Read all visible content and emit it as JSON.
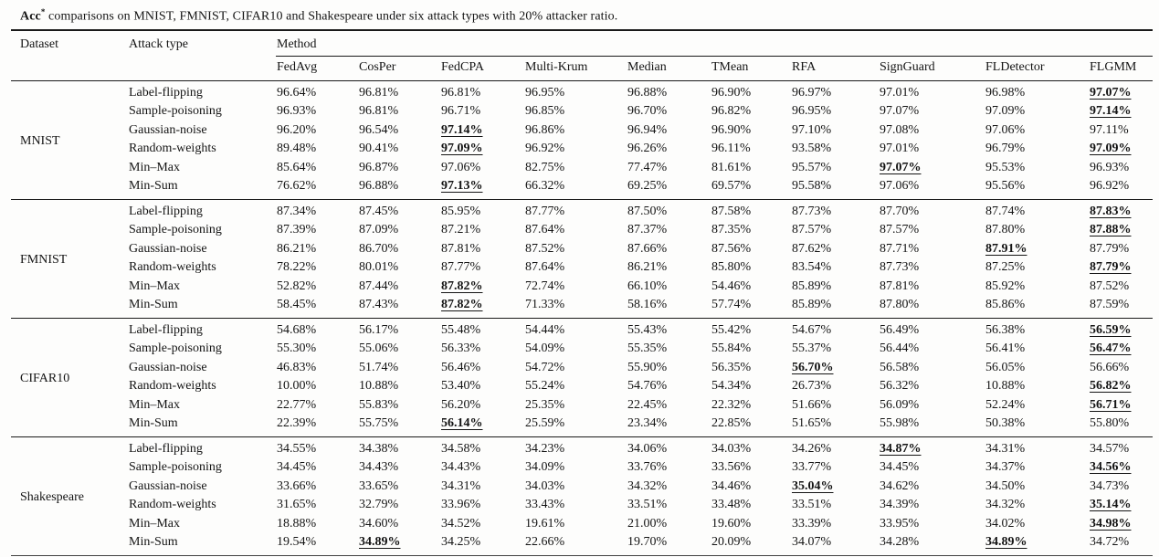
{
  "caption": {
    "lead": "Acc",
    "sup": "*",
    "rest": " comparisons on MNIST, FMNIST, CIFAR10 and Shakespeare under six attack types with 20% attacker ratio."
  },
  "table": {
    "col1_header": "Dataset",
    "col2_header": "Attack type",
    "method_group_header": "Method",
    "methods": [
      "FedAvg",
      "CosPer",
      "FedCPA",
      "Multi-Krum",
      "Median",
      "TMean",
      "RFA",
      "SignGuard",
      "FLDetector",
      "FLGMM"
    ],
    "sections": [
      {
        "dataset": "MNIST",
        "rows": [
          {
            "attack": "Label-flipping",
            "values": [
              "96.64%",
              "96.81%",
              "96.81%",
              "96.95%",
              "96.88%",
              "96.90%",
              "96.97%",
              "97.01%",
              "96.98%",
              "97.07%"
            ],
            "best": [
              9
            ]
          },
          {
            "attack": "Sample-poisoning",
            "values": [
              "96.93%",
              "96.81%",
              "96.71%",
              "96.85%",
              "96.70%",
              "96.82%",
              "96.95%",
              "97.07%",
              "97.09%",
              "97.14%"
            ],
            "best": [
              9
            ]
          },
          {
            "attack": "Gaussian-noise",
            "values": [
              "96.20%",
              "96.54%",
              "97.14%",
              "96.86%",
              "96.94%",
              "96.90%",
              "97.10%",
              "97.08%",
              "97.06%",
              "97.11%"
            ],
            "best": [
              2
            ]
          },
          {
            "attack": "Random-weights",
            "values": [
              "89.48%",
              "90.41%",
              "97.09%",
              "96.92%",
              "96.26%",
              "96.11%",
              "93.58%",
              "97.01%",
              "96.79%",
              "97.09%"
            ],
            "best": [
              2,
              9
            ]
          },
          {
            "attack": "Min–Max",
            "values": [
              "85.64%",
              "96.87%",
              "97.06%",
              "82.75%",
              "77.47%",
              "81.61%",
              "95.57%",
              "97.07%",
              "95.53%",
              "96.93%"
            ],
            "best": [
              7
            ]
          },
          {
            "attack": "Min-Sum",
            "values": [
              "76.62%",
              "96.88%",
              "97.13%",
              "66.32%",
              "69.25%",
              "69.57%",
              "95.58%",
              "97.06%",
              "95.56%",
              "96.92%"
            ],
            "best": [
              2
            ]
          }
        ]
      },
      {
        "dataset": "FMNIST",
        "rows": [
          {
            "attack": "Label-flipping",
            "values": [
              "87.34%",
              "87.45%",
              "85.95%",
              "87.77%",
              "87.50%",
              "87.58%",
              "87.73%",
              "87.70%",
              "87.74%",
              "87.83%"
            ],
            "best": [
              9
            ]
          },
          {
            "attack": "Sample-poisoning",
            "values": [
              "87.39%",
              "87.09%",
              "87.21%",
              "87.64%",
              "87.37%",
              "87.35%",
              "87.57%",
              "87.57%",
              "87.80%",
              "87.88%"
            ],
            "best": [
              9
            ]
          },
          {
            "attack": "Gaussian-noise",
            "values": [
              "86.21%",
              "86.70%",
              "87.81%",
              "87.52%",
              "87.66%",
              "87.56%",
              "87.62%",
              "87.71%",
              "87.91%",
              "87.79%"
            ],
            "best": [
              8
            ]
          },
          {
            "attack": "Random-weights",
            "values": [
              "78.22%",
              "80.01%",
              "87.77%",
              "87.64%",
              "86.21%",
              "85.80%",
              "83.54%",
              "87.73%",
              "87.25%",
              "87.79%"
            ],
            "best": [
              9
            ]
          },
          {
            "attack": "Min–Max",
            "values": [
              "52.82%",
              "87.44%",
              "87.82%",
              "72.74%",
              "66.10%",
              "54.46%",
              "85.89%",
              "87.81%",
              "85.92%",
              "87.52%"
            ],
            "best": [
              2
            ]
          },
          {
            "attack": "Min-Sum",
            "values": [
              "58.45%",
              "87.43%",
              "87.82%",
              "71.33%",
              "58.16%",
              "57.74%",
              "85.89%",
              "87.80%",
              "85.86%",
              "87.59%"
            ],
            "best": [
              2
            ]
          }
        ]
      },
      {
        "dataset": "CIFAR10",
        "rows": [
          {
            "attack": "Label-flipping",
            "values": [
              "54.68%",
              "56.17%",
              "55.48%",
              "54.44%",
              "55.43%",
              "55.42%",
              "54.67%",
              "56.49%",
              "56.38%",
              "56.59%"
            ],
            "best": [
              9
            ]
          },
          {
            "attack": "Sample-poisoning",
            "values": [
              "55.30%",
              "55.06%",
              "56.33%",
              "54.09%",
              "55.35%",
              "55.84%",
              "55.37%",
              "56.44%",
              "56.41%",
              "56.47%"
            ],
            "best": [
              9
            ]
          },
          {
            "attack": "Gaussian-noise",
            "values": [
              "46.83%",
              "51.74%",
              "56.46%",
              "54.72%",
              "55.90%",
              "56.35%",
              "56.70%",
              "56.58%",
              "56.05%",
              "56.66%"
            ],
            "best": [
              6
            ]
          },
          {
            "attack": "Random-weights",
            "values": [
              "10.00%",
              "10.88%",
              "53.40%",
              "55.24%",
              "54.76%",
              "54.34%",
              "26.73%",
              "56.32%",
              "10.88%",
              "56.82%"
            ],
            "best": [
              9
            ]
          },
          {
            "attack": "Min–Max",
            "values": [
              "22.77%",
              "55.83%",
              "56.20%",
              "25.35%",
              "22.45%",
              "22.32%",
              "51.66%",
              "56.09%",
              "52.24%",
              "56.71%"
            ],
            "best": [
              9
            ]
          },
          {
            "attack": "Min-Sum",
            "values": [
              "22.39%",
              "55.75%",
              "56.14%",
              "25.59%",
              "23.34%",
              "22.85%",
              "51.65%",
              "55.98%",
              "50.38%",
              "55.80%"
            ],
            "best": [
              2
            ]
          }
        ]
      },
      {
        "dataset": "Shakespeare",
        "rows": [
          {
            "attack": "Label-flipping",
            "values": [
              "34.55%",
              "34.38%",
              "34.58%",
              "34.23%",
              "34.06%",
              "34.03%",
              "34.26%",
              "34.87%",
              "34.31%",
              "34.57%"
            ],
            "best": [
              7
            ]
          },
          {
            "attack": "Sample-poisoning",
            "values": [
              "34.45%",
              "34.43%",
              "34.43%",
              "34.09%",
              "33.76%",
              "33.56%",
              "33.77%",
              "34.45%",
              "34.37%",
              "34.56%"
            ],
            "best": [
              9
            ]
          },
          {
            "attack": "Gaussian-noise",
            "values": [
              "33.66%",
              "33.65%",
              "34.31%",
              "34.03%",
              "34.32%",
              "34.46%",
              "35.04%",
              "34.62%",
              "34.50%",
              "34.73%"
            ],
            "best": [
              6
            ]
          },
          {
            "attack": "Random-weights",
            "values": [
              "31.65%",
              "32.79%",
              "33.96%",
              "33.43%",
              "33.51%",
              "33.48%",
              "33.51%",
              "34.39%",
              "34.32%",
              "35.14%"
            ],
            "best": [
              9
            ]
          },
          {
            "attack": "Min–Max",
            "values": [
              "18.88%",
              "34.60%",
              "34.52%",
              "19.61%",
              "21.00%",
              "19.60%",
              "33.39%",
              "33.95%",
              "34.02%",
              "34.98%"
            ],
            "best": [
              9
            ]
          },
          {
            "attack": "Min-Sum",
            "values": [
              "19.54%",
              "34.89%",
              "34.25%",
              "22.66%",
              "19.70%",
              "20.09%",
              "34.07%",
              "34.28%",
              "34.89%",
              "34.72%"
            ],
            "best": [
              1,
              8
            ]
          }
        ]
      }
    ]
  }
}
